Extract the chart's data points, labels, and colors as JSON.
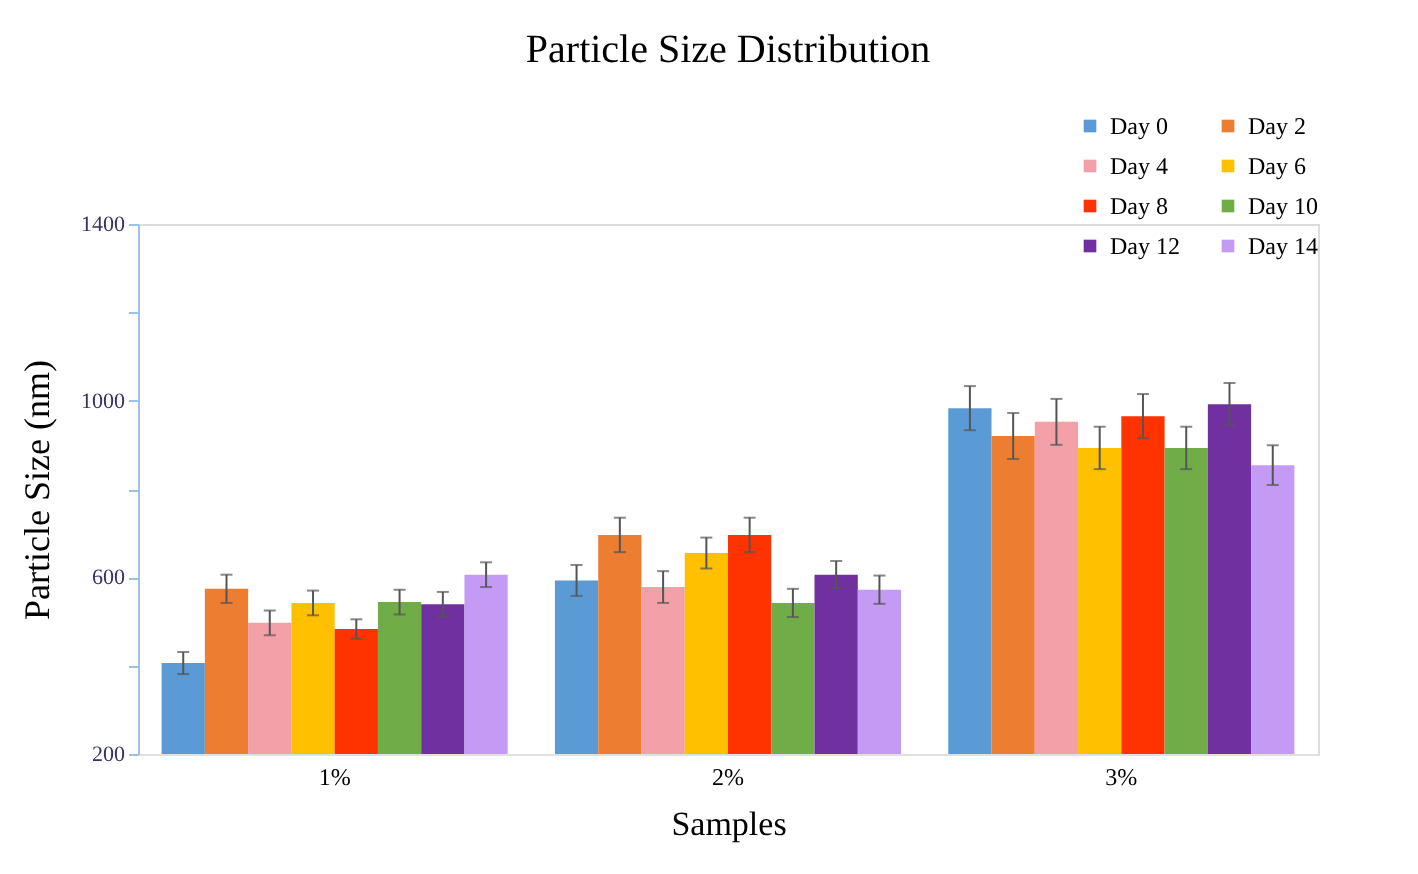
{
  "chart_data": {
    "type": "bar",
    "title": "Particle Size Distribution",
    "xlabel": "Samples",
    "ylabel": "Particle Size (nm)",
    "categories": [
      "1%",
      "2%",
      "3%"
    ],
    "series": [
      {
        "name": "Day 0",
        "color": "#5b9bd5",
        "values": [
          406,
          593,
          983
        ],
        "errors": [
          25,
          35,
          50
        ]
      },
      {
        "name": "Day 2",
        "color": "#ed7d31",
        "values": [
          574,
          696,
          920
        ],
        "errors": [
          32,
          39,
          52
        ]
      },
      {
        "name": "Day 4",
        "color": "#f4a0a8",
        "values": [
          497,
          578,
          952
        ],
        "errors": [
          28,
          36,
          52
        ]
      },
      {
        "name": "Day 6",
        "color": "#ffc000",
        "values": [
          542,
          655,
          893
        ],
        "errors": [
          28,
          35,
          48
        ]
      },
      {
        "name": "Day 8",
        "color": "#ff3300",
        "values": [
          483,
          696,
          965
        ],
        "errors": [
          22,
          39,
          50
        ]
      },
      {
        "name": "Day 10",
        "color": "#70ad47",
        "values": [
          544,
          542,
          893
        ],
        "errors": [
          28,
          32,
          48
        ]
      },
      {
        "name": "Day 12",
        "color": "#7030a0",
        "values": [
          539,
          606,
          992
        ],
        "errors": [
          28,
          31,
          48
        ]
      },
      {
        "name": "Day 14",
        "color": "#c39bf5",
        "values": [
          606,
          572,
          854
        ],
        "errors": [
          28,
          32,
          45
        ]
      }
    ],
    "ylim": [
      200,
      1400
    ],
    "yticks": [
      200,
      {
        "value": 400,
        "label": null
      },
      600,
      {
        "value": 800,
        "label": null
      },
      1000,
      {
        "value": 1200,
        "label": null
      },
      1400
    ],
    "grid": false,
    "legend": "top right"
  }
}
